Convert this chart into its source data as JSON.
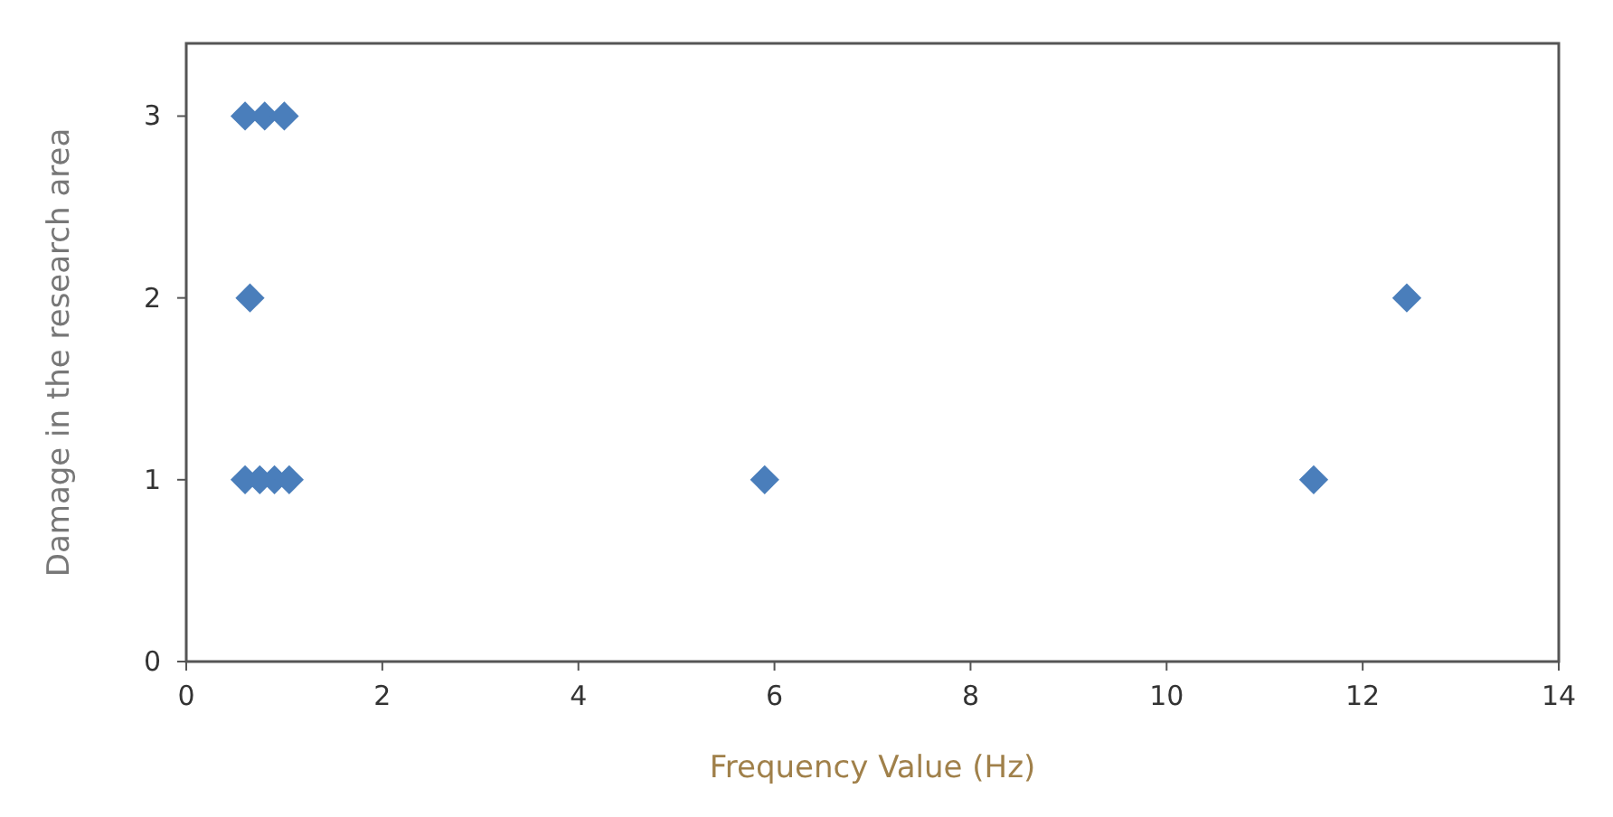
{
  "chart_data": {
    "type": "scatter",
    "xlabel": "Frequency Value (Hz)",
    "ylabel": "Damage in the research area",
    "marker": "diamond",
    "grid": false,
    "xlim": [
      0,
      14
    ],
    "xticks": [
      0,
      2,
      4,
      6,
      8,
      10,
      12,
      14
    ],
    "ylim": [
      0,
      3.4
    ],
    "yticks": [
      0,
      1,
      2,
      3
    ],
    "series": [
      {
        "color": "#4a7ebb",
        "x": [
          0.6,
          0.8,
          1.0,
          0.65,
          12.45,
          0.6,
          0.75,
          0.9,
          1.05,
          5.9,
          11.5
        ],
        "values": [
          3,
          3,
          3,
          2,
          2,
          1,
          1,
          1,
          1,
          1,
          1
        ]
      }
    ]
  }
}
